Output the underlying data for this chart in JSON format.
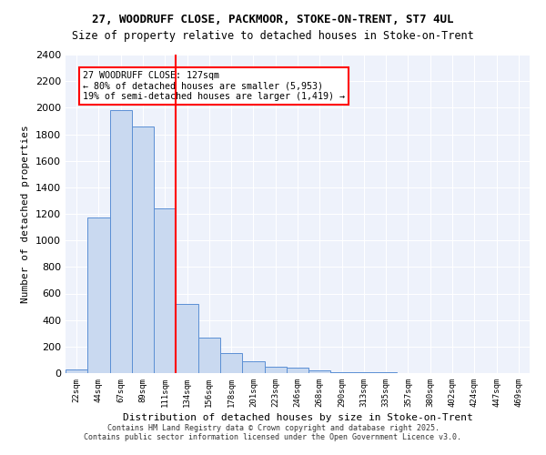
{
  "title_line1": "27, WOODRUFF CLOSE, PACKMOOR, STOKE-ON-TRENT, ST7 4UL",
  "title_line2": "Size of property relative to detached houses in Stoke-on-Trent",
  "xlabel": "Distribution of detached houses by size in Stoke-on-Trent",
  "ylabel": "Number of detached properties",
  "bin_labels": [
    "22sqm",
    "44sqm",
    "67sqm",
    "89sqm",
    "111sqm",
    "134sqm",
    "156sqm",
    "178sqm",
    "201sqm",
    "223sqm",
    "246sqm",
    "268sqm",
    "290sqm",
    "313sqm",
    "335sqm",
    "357sqm",
    "380sqm",
    "402sqm",
    "424sqm",
    "447sqm",
    "469sqm"
  ],
  "bar_heights": [
    25,
    1170,
    1980,
    1860,
    1240,
    520,
    270,
    150,
    90,
    45,
    40,
    20,
    10,
    5,
    4,
    3,
    2,
    2,
    1,
    1,
    1
  ],
  "bar_color": "#c9d9f0",
  "bar_edge_color": "#5b8fd4",
  "bg_color": "#eef2fb",
  "grid_color": "#ffffff",
  "red_line_x": 5,
  "annotation_text": "27 WOODRUFF CLOSE: 127sqm\n← 80% of detached houses are smaller (5,953)\n19% of semi-detached houses are larger (1,419) →",
  "annotation_box_color": "#ff0000",
  "ylim": [
    0,
    2400
  ],
  "yticks": [
    0,
    200,
    400,
    600,
    800,
    1000,
    1200,
    1400,
    1600,
    1800,
    2000,
    2200,
    2400
  ],
  "footer_line1": "Contains HM Land Registry data © Crown copyright and database right 2025.",
  "footer_line2": "Contains public sector information licensed under the Open Government Licence v3.0."
}
